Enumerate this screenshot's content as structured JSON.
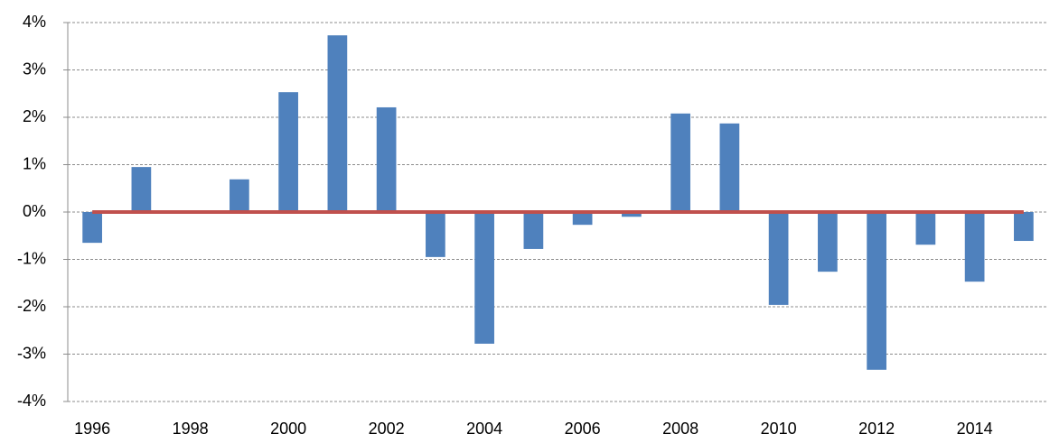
{
  "chart_data": {
    "type": "bar",
    "categories": [
      "1996",
      null,
      "1998",
      null,
      "2000",
      null,
      "2002",
      null,
      "2004",
      null,
      "2006",
      null,
      "2008",
      null,
      "2010",
      null,
      "2012",
      null,
      "2014",
      null
    ],
    "series": [
      {
        "color": "#4f81bd",
        "values": [
          -0.65,
          0.95,
          0,
          0.69,
          2.53,
          3.73,
          2.21,
          -0.95,
          -2.78,
          -0.78,
          -0.27,
          -0.1,
          2.08,
          1.87,
          -1.96,
          -1.26,
          -3.33,
          -0.69,
          -1.47,
          -0.61
        ]
      },
      {
        "type": "line",
        "color": "#c0504d",
        "values": [
          0,
          0,
          0,
          0,
          0,
          0,
          0,
          0,
          0,
          0,
          0,
          0,
          0,
          0,
          0,
          0,
          0,
          0,
          0,
          0
        ]
      }
    ],
    "ylim": [
      -4,
      4
    ],
    "yticks": [
      {
        "value": -4,
        "label": "-4%"
      },
      {
        "value": -3,
        "label": "-3%"
      },
      {
        "value": -2,
        "label": "-2%"
      },
      {
        "value": -1,
        "label": "-1%"
      },
      {
        "value": 0,
        "label": "0%"
      },
      {
        "value": 1,
        "label": "1%"
      },
      {
        "value": 2,
        "label": "2%"
      },
      {
        "value": 3,
        "label": "3%"
      },
      {
        "value": 4,
        "label": "4%"
      }
    ],
    "grid": true
  }
}
